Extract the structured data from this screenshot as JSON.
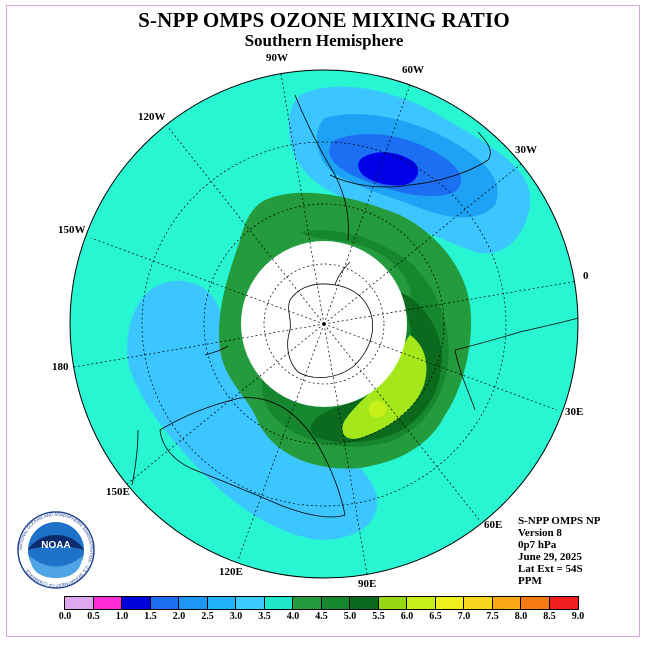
{
  "title": "S-NPP OMPS OZONE MIXING RATIO",
  "subtitle": "Southern Hemisphere",
  "longitude_labels": [
    "90W",
    "60W",
    "30W",
    "0",
    "30E",
    "60E",
    "90E",
    "120E",
    "150E",
    "180",
    "150W",
    "120W"
  ],
  "info": {
    "line1": "S-NPP OMPS NP",
    "line2": "Version 8",
    "line3": "0p7 hPa",
    "line4": "June 29, 2025",
    "line5": "Lat Ext = 54S",
    "line6": "PPM"
  },
  "logo": {
    "text": "NOAA",
    "ring_text": "NATIONAL OCEANIC AND ATMOSPHERIC ADMINISTRATION · U.S. DEPARTMENT OF COMMERCE"
  },
  "colorbar": {
    "ticks": [
      "0.0",
      "0.5",
      "1.0",
      "1.5",
      "2.0",
      "2.5",
      "3.0",
      "3.5",
      "4.0",
      "4.5",
      "5.0",
      "5.5",
      "6.0",
      "6.5",
      "7.0",
      "7.5",
      "8.0",
      "8.5",
      "9.0"
    ],
    "colors": [
      "#b07fe0",
      "#dda8f0",
      "#ff2bd9",
      "#0000d8",
      "#1c6ef2",
      "#1e96f5",
      "#22b4fa",
      "#3ccbff",
      "#1ee8c8",
      "#249b3c",
      "#16862f",
      "#0b6a1e",
      "#96d814",
      "#c8f018",
      "#f0f01e",
      "#f8d81e",
      "#f8a816",
      "#f87a10",
      "#f01e1e",
      "#8c5a3c"
    ]
  },
  "map": {
    "ocean_color": "#28f5d2",
    "polar_night_color": "#ffffff",
    "high_ozone_color": "#a4e81c",
    "low_ozone_color": "#0000e8"
  }
}
